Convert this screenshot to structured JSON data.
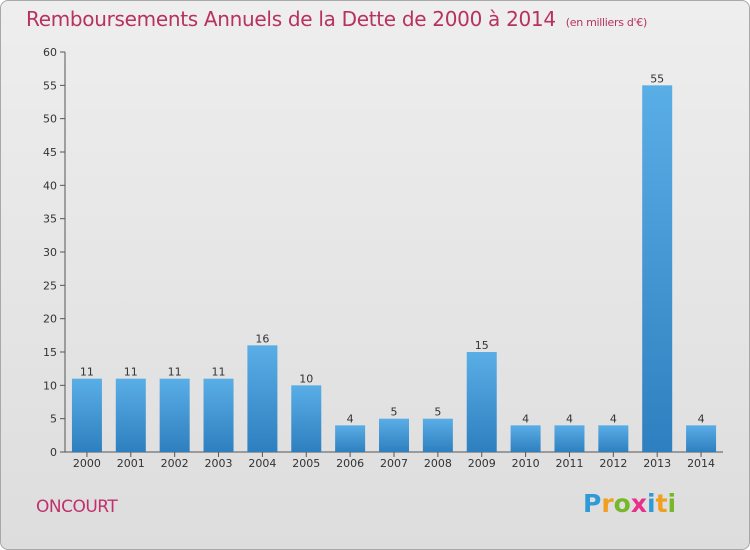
{
  "title": "Remboursements Annuels de la Dette de 2000 à 2014",
  "unit": "(en milliers d'€)",
  "place": "ONCOURT",
  "logo": {
    "letters": [
      "P",
      "r",
      "o",
      "x",
      "i",
      "t",
      "i"
    ],
    "colors": [
      "#2f9bd6",
      "#f0a020",
      "#76b82a",
      "#e8308a",
      "#2f9bd6",
      "#f0a020",
      "#76b82a"
    ]
  },
  "colors": {
    "bar_top": "#5aaee6",
    "bar_bottom": "#2e7fbf",
    "title": "#b8315f"
  },
  "chart_data": {
    "type": "bar",
    "categories": [
      "2000",
      "2001",
      "2002",
      "2003",
      "2004",
      "2005",
      "2006",
      "2007",
      "2008",
      "2009",
      "2010",
      "2011",
      "2012",
      "2013",
      "2014"
    ],
    "values": [
      11,
      11,
      11,
      11,
      16,
      10,
      4,
      5,
      5,
      15,
      4,
      4,
      4,
      55,
      4
    ],
    "ylim": [
      0,
      60
    ],
    "yticks": [
      0,
      5,
      10,
      15,
      20,
      25,
      30,
      35,
      40,
      45,
      50,
      55,
      60
    ],
    "grid": false
  }
}
